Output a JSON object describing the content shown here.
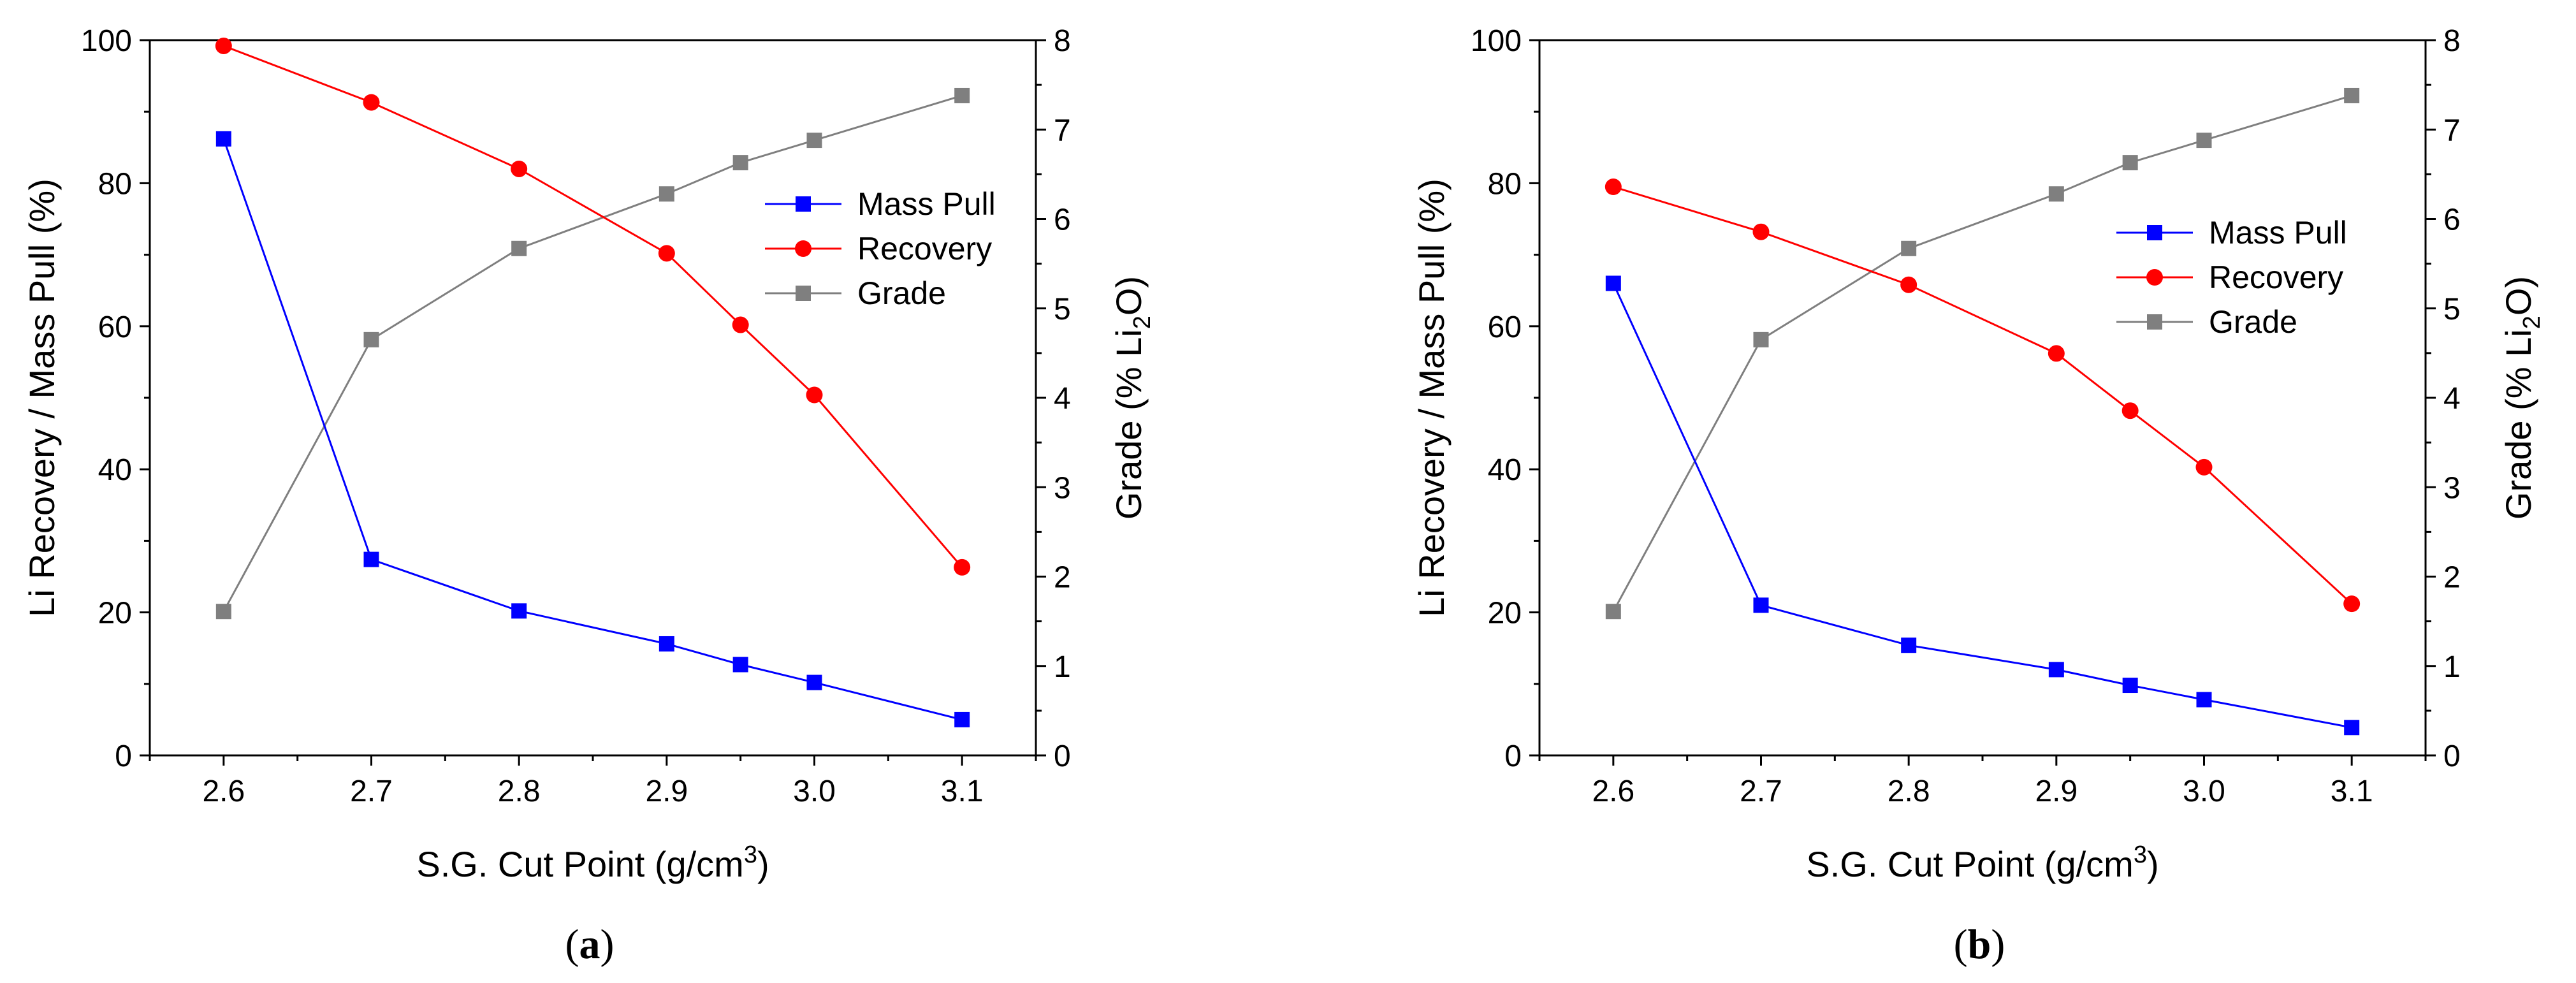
{
  "chart_data": [
    {
      "type": "line",
      "panel_label": "a",
      "xlabel": "S.G. Cut Point (g/cm",
      "xlabel_sup": "3",
      "xlabel_tail": ")",
      "ylabel_left": "Li Recovery / Mass Pull (%)",
      "ylabel_right": "Grade (% Li",
      "ylabel_right_sub": "2",
      "ylabel_right_tail": "O)",
      "xlim": [
        2.55,
        3.15
      ],
      "xticks": [
        2.6,
        2.7,
        2.8,
        2.9,
        3.0,
        3.1
      ],
      "xtick_labels": [
        "2.6",
        "2.7",
        "2.8",
        "2.9",
        "3.0",
        "3.1"
      ],
      "ylim_left": [
        0,
        100
      ],
      "yticks_left": [
        0,
        20,
        40,
        60,
        80,
        100
      ],
      "ylim_right": [
        0,
        8
      ],
      "yticks_right": [
        0,
        1,
        2,
        3,
        4,
        5,
        6,
        7,
        8
      ],
      "legend_position": "right",
      "x": [
        2.6,
        2.7,
        2.8,
        2.9,
        2.95,
        3.0,
        3.1
      ],
      "series": [
        {
          "name": "Mass Pull",
          "axis": "left",
          "color": "#0000ff",
          "marker": "square",
          "values": [
            86.2,
            27.4,
            20.2,
            15.6,
            12.7,
            10.2,
            5.0
          ]
        },
        {
          "name": "Recovery",
          "axis": "left",
          "color": "#ff0000",
          "marker": "circle",
          "values": [
            99.2,
            91.3,
            82.0,
            70.2,
            60.2,
            50.4,
            26.3
          ]
        },
        {
          "name": "Grade",
          "axis": "right",
          "color": "#7f7f7f",
          "marker": "square",
          "values": [
            1.61,
            4.65,
            5.67,
            6.28,
            6.63,
            6.88,
            7.38
          ]
        }
      ]
    },
    {
      "type": "line",
      "panel_label": "b",
      "xlabel": "S.G. Cut Point (g/cm",
      "xlabel_sup": "3",
      "xlabel_tail": ")",
      "ylabel_left": "Li Recovery / Mass Pull (%)",
      "ylabel_right": "Grade (% Li",
      "ylabel_right_sub": "2",
      "ylabel_right_tail": "O)",
      "xlim": [
        2.55,
        3.15
      ],
      "xticks": [
        2.6,
        2.7,
        2.8,
        2.9,
        3.0,
        3.1
      ],
      "xtick_labels": [
        "2.6",
        "2.7",
        "2.8",
        "2.9",
        "3.0",
        "3.1"
      ],
      "ylim_left": [
        0,
        100
      ],
      "yticks_left": [
        0,
        20,
        40,
        60,
        80,
        100
      ],
      "ylim_right": [
        0,
        8
      ],
      "yticks_right": [
        0,
        1,
        2,
        3,
        4,
        5,
        6,
        7,
        8
      ],
      "legend_position": "right",
      "x": [
        2.6,
        2.7,
        2.8,
        2.9,
        2.95,
        3.0,
        3.1
      ],
      "series": [
        {
          "name": "Mass Pull",
          "axis": "left",
          "color": "#0000ff",
          "marker": "square",
          "values": [
            66.0,
            21.0,
            15.4,
            12.0,
            9.8,
            7.8,
            3.9
          ]
        },
        {
          "name": "Recovery",
          "axis": "left",
          "color": "#ff0000",
          "marker": "circle",
          "values": [
            79.5,
            73.2,
            65.8,
            56.2,
            48.2,
            40.3,
            21.2
          ]
        },
        {
          "name": "Grade",
          "axis": "right",
          "color": "#7f7f7f",
          "marker": "square",
          "values": [
            1.61,
            4.65,
            5.67,
            6.28,
            6.63,
            6.88,
            7.38
          ]
        }
      ]
    }
  ]
}
